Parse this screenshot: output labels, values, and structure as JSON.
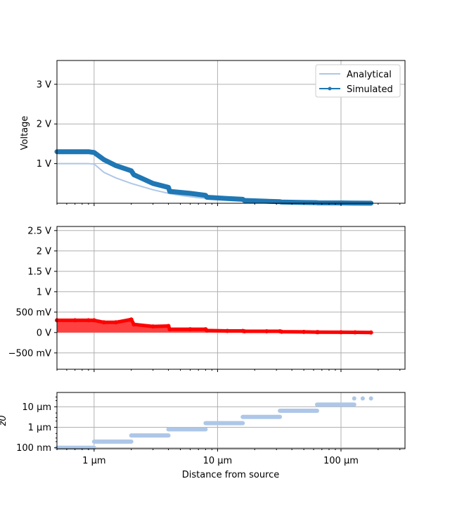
{
  "colors": {
    "analytical": "#aec7e8",
    "simulated": "#1f77b4",
    "error": "#ff0000",
    "error_fill": "#ff4040",
    "step": "#aec7e8",
    "grid": "#b0b0b0"
  },
  "chart_data": [
    {
      "type": "line",
      "xscale": "log",
      "xlim_um": [
        0.5,
        330
      ],
      "ylim": [
        0,
        3.6
      ],
      "ylabel": "Voltage",
      "yticks": [
        {
          "v": 1,
          "label": "1 V"
        },
        {
          "v": 2,
          "label": "2 V"
        },
        {
          "v": 3,
          "label": "3 V"
        }
      ],
      "grid": true,
      "legend": {
        "placement": "top-right",
        "entries": [
          "Analytical",
          "Simulated"
        ]
      },
      "series": [
        {
          "name": "Analytical",
          "x_um": [
            0.5,
            0.6,
            0.7,
            0.8,
            0.9,
            1,
            1.2,
            1.5,
            2,
            3,
            4,
            5,
            7,
            10,
            15,
            20,
            30,
            50,
            70,
            100,
            150,
            180
          ],
          "y_V": [
            1,
            1,
            1,
            1,
            1,
            0.99,
            0.78,
            0.64,
            0.5,
            0.34,
            0.25,
            0.2,
            0.14,
            0.1,
            0.07,
            0.05,
            0.035,
            0.022,
            0.016,
            0.011,
            0.008,
            0.006
          ]
        },
        {
          "name": "Simulated",
          "x_um": [
            0.5,
            0.7,
            0.9,
            1,
            1.2,
            1.5,
            2,
            2.1,
            3,
            4,
            4.1,
            6,
            8,
            8.2,
            12,
            16,
            16.5,
            25,
            32,
            33,
            50,
            64,
            65,
            100,
            130,
            175
          ],
          "y_V": [
            1.3,
            1.3,
            1.3,
            1.28,
            1.1,
            0.95,
            0.82,
            0.72,
            0.5,
            0.4,
            0.3,
            0.25,
            0.2,
            0.15,
            0.12,
            0.1,
            0.07,
            0.05,
            0.04,
            0.03,
            0.02,
            0.015,
            0.01,
            0.008,
            0.005,
            0.003
          ]
        }
      ]
    },
    {
      "type": "area",
      "xscale": "log",
      "xlim_um": [
        0.5,
        330
      ],
      "ylim_mV": [
        -900,
        2600
      ],
      "yticks": [
        {
          "v": -500,
          "label": "−500 mV"
        },
        {
          "v": 0,
          "label": "0 V"
        },
        {
          "v": 500,
          "label": "500 mV"
        },
        {
          "v": 1000,
          "label": "1 V"
        },
        {
          "v": 1500,
          "label": "1.5 V"
        },
        {
          "v": 2000,
          "label": "2 V"
        },
        {
          "v": 2500,
          "label": "2.5 V"
        }
      ],
      "grid": true,
      "series": [
        {
          "x_um": [
            0.5,
            0.7,
            0.9,
            1,
            1.2,
            1.5,
            2,
            2.1,
            3,
            4,
            4.1,
            6,
            8,
            8.2,
            12,
            16,
            16.5,
            25,
            32,
            33,
            50,
            64,
            65,
            100,
            130,
            175
          ],
          "y_mV": [
            300,
            300,
            300,
            300,
            250,
            250,
            320,
            200,
            150,
            160,
            80,
            80,
            80,
            50,
            40,
            40,
            30,
            30,
            30,
            20,
            15,
            10,
            10,
            8,
            5,
            0
          ]
        }
      ]
    },
    {
      "type": "scatter",
      "xscale": "log",
      "yscale": "log",
      "xlim_um": [
        0.5,
        330
      ],
      "ylim_um": [
        0.09,
        50
      ],
      "ylabel": "z0",
      "xlabel": "Distance from source",
      "xticks": [
        {
          "v": 1,
          "label": "1 µm"
        },
        {
          "v": 10,
          "label": "10 µm"
        },
        {
          "v": 100,
          "label": "100 µm"
        }
      ],
      "yticks": [
        {
          "v": 0.1,
          "label": "100 nm"
        },
        {
          "v": 1,
          "label": "1 µm"
        },
        {
          "v": 10,
          "label": "10 µm"
        }
      ],
      "grid": true,
      "steps": [
        {
          "x_um": [
            0.5,
            1.0
          ],
          "y_um": 0.1
        },
        {
          "x_um": [
            1.0,
            2.0
          ],
          "y_um": 0.2
        },
        {
          "x_um": [
            2.0,
            4.0
          ],
          "y_um": 0.4
        },
        {
          "x_um": [
            4.0,
            8.0
          ],
          "y_um": 0.8
        },
        {
          "x_um": [
            8.0,
            16.0
          ],
          "y_um": 1.6
        },
        {
          "x_um": [
            16.0,
            32.0
          ],
          "y_um": 3.2
        },
        {
          "x_um": [
            32.0,
            64.0
          ],
          "y_um": 6.4
        },
        {
          "x_um": [
            64.0,
            128.0
          ],
          "y_um": 12.8
        },
        {
          "x_um": [
            128.0,
            175.0
          ],
          "y_um": 25.6
        }
      ]
    }
  ]
}
